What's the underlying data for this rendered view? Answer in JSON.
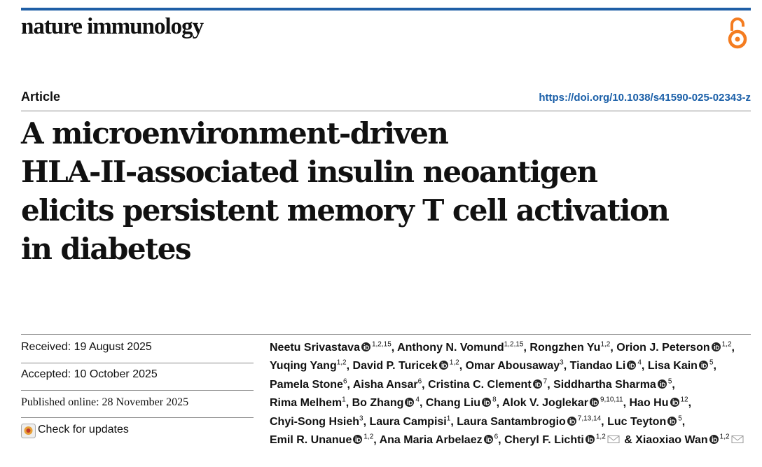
{
  "header": {
    "journal": "nature immunology",
    "article_type": "Article",
    "doi": "https://doi.org/10.1038/s41590-025-02343-z"
  },
  "title_lines": [
    "A microenvironment-driven",
    "HLA-II-associated insulin neoantigen",
    "elicits persistent memory T cell activation",
    "in diabetes"
  ],
  "dates": {
    "received": "Received: 19 August 2025",
    "accepted": "Accepted: 10 October 2025",
    "published": "Published online: 28 November 2025",
    "check_updates": "Check for updates"
  },
  "separator": ",",
  "last_separator": "&",
  "authors": [
    {
      "name": "Neetu Srivastava",
      "orcid": true,
      "affiliations": "1,2,15"
    },
    {
      "name": "Anthony N. Vomund",
      "orcid": false,
      "affiliations": "1,2,15"
    },
    {
      "name": "Rongzhen Yu",
      "orcid": false,
      "affiliations": "1,2"
    },
    {
      "name": "Orion J. Peterson",
      "orcid": true,
      "affiliations": "1,2"
    },
    {
      "name": "Yuqing Yang",
      "orcid": false,
      "affiliations": "1,2"
    },
    {
      "name": "David P. Turicek",
      "orcid": true,
      "affiliations": "1,2"
    },
    {
      "name": "Omar Abousaway",
      "orcid": false,
      "affiliations": "3"
    },
    {
      "name": "Tiandao Li",
      "orcid": true,
      "affiliations": "4"
    },
    {
      "name": "Lisa Kain",
      "orcid": true,
      "affiliations": "5"
    },
    {
      "name": "Pamela Stone",
      "orcid": false,
      "affiliations": "6"
    },
    {
      "name": "Aisha Ansar",
      "orcid": false,
      "affiliations": "6"
    },
    {
      "name": "Cristina C. Clement",
      "orcid": true,
      "affiliations": "7"
    },
    {
      "name": "Siddhartha Sharma",
      "orcid": true,
      "affiliations": "5"
    },
    {
      "name": "Rima Melhem",
      "orcid": false,
      "affiliations": "1"
    },
    {
      "name": "Bo Zhang",
      "orcid": true,
      "affiliations": "4"
    },
    {
      "name": "Chang Liu",
      "orcid": true,
      "affiliations": "8"
    },
    {
      "name": "Alok V. Joglekar",
      "orcid": true,
      "affiliations": "9,10,11"
    },
    {
      "name": "Hao Hu",
      "orcid": true,
      "affiliations": "12"
    },
    {
      "name": "Chyi-Song Hsieh",
      "orcid": false,
      "affiliations": "3"
    },
    {
      "name": "Laura Campisi",
      "orcid": false,
      "affiliations": "1"
    },
    {
      "name": "Laura Santambrogio",
      "orcid": true,
      "affiliations": "7,13,14"
    },
    {
      "name": "Luc Teyton",
      "orcid": true,
      "affiliations": "5"
    },
    {
      "name": "Emil R. Unanue",
      "orcid": true,
      "affiliations": "1,2"
    },
    {
      "name": "Ana Maria Arbelaez",
      "orcid": true,
      "affiliations": "6"
    },
    {
      "name": "Cheryl F. Lichti",
      "orcid": true,
      "affiliations": "1,2",
      "email": true
    },
    {
      "name": "Xiaoxiao Wan",
      "orcid": true,
      "affiliations": "1,2",
      "email": true
    }
  ]
}
